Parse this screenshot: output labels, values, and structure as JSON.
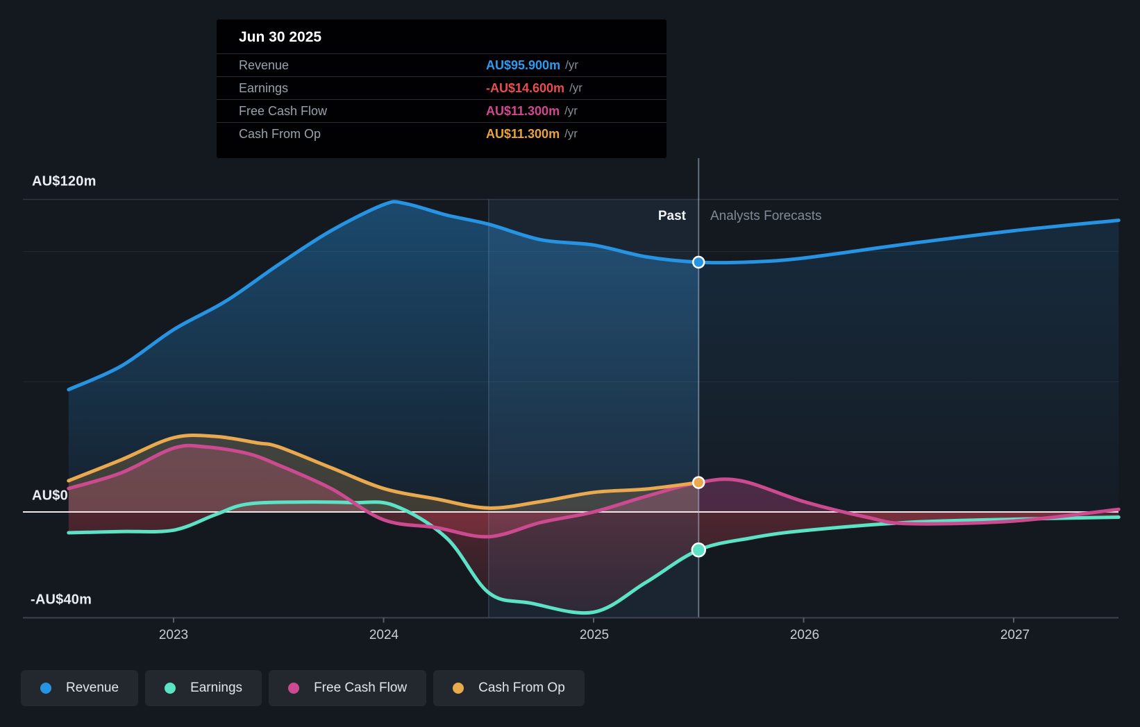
{
  "tooltip": {
    "title": "Jun 30 2025",
    "rows": [
      {
        "label": "Revenue",
        "value": "AU$95.900m",
        "suffix": "/yr",
        "color": "#2d9bf0"
      },
      {
        "label": "Earnings",
        "value": "-AU$14.600m",
        "suffix": "/yr",
        "color": "#e84e4e"
      },
      {
        "label": "Free Cash Flow",
        "value": "AU$11.300m",
        "suffix": "/yr",
        "color": "#d2478f"
      },
      {
        "label": "Cash From Op",
        "value": "AU$11.300m",
        "suffix": "/yr",
        "color": "#e8a33d"
      }
    ]
  },
  "annotations": {
    "past": "Past",
    "forecast": "Analysts Forecasts"
  },
  "y_axis": {
    "labels": [
      {
        "text": "AU$120m",
        "value": 120
      },
      {
        "text": "AU$0",
        "value": 0
      },
      {
        "text": "-AU$40m",
        "value": -40
      }
    ],
    "faint_gridline_values": [
      100,
      50
    ]
  },
  "x_axis": {
    "labels": [
      "2023",
      "2024",
      "2025",
      "2026",
      "2027"
    ],
    "values": [
      2023,
      2024,
      2025,
      2026,
      2027
    ]
  },
  "legend": [
    {
      "label": "Revenue",
      "color": "#2694e3"
    },
    {
      "label": "Earnings",
      "color": "#5ce2c5"
    },
    {
      "label": "Free Cash Flow",
      "color": "#cc4b90"
    },
    {
      "label": "Cash From Op",
      "color": "#e9a94e"
    }
  ],
  "chart_data": {
    "type": "line",
    "title": "Past and future earnings per share, AU$ millions per year",
    "x_range": [
      2022.5,
      2027.5
    ],
    "y_range": [
      -40.5,
      135
    ],
    "divider_x": 2025.5,
    "highlight_band": [
      2024.5,
      2025.5
    ],
    "gridlines": [
      120,
      100,
      50,
      0,
      -40
    ],
    "marker_x": 2025.5,
    "series": [
      {
        "name": "Revenue",
        "color": "#2694e3",
        "marker_value": 95.9,
        "has_forecast": true,
        "points": [
          [
            2022.5,
            47
          ],
          [
            2022.75,
            56
          ],
          [
            2023.0,
            70
          ],
          [
            2023.25,
            81
          ],
          [
            2023.5,
            95
          ],
          [
            2023.75,
            108
          ],
          [
            2024.0,
            118
          ],
          [
            2024.1,
            118.5
          ],
          [
            2024.3,
            114
          ],
          [
            2024.5,
            110.5
          ],
          [
            2024.75,
            104.5
          ],
          [
            2025.0,
            102.5
          ],
          [
            2025.25,
            98
          ],
          [
            2025.5,
            95.9
          ],
          [
            2025.75,
            96
          ],
          [
            2026.0,
            97.5
          ],
          [
            2026.5,
            103
          ],
          [
            2027.0,
            108
          ],
          [
            2027.5,
            112
          ]
        ]
      },
      {
        "name": "Earnings",
        "color": "#5ce2c5",
        "marker_value": -14.6,
        "has_forecast": true,
        "points": [
          [
            2022.5,
            -8
          ],
          [
            2022.75,
            -7.5
          ],
          [
            2023.0,
            -7
          ],
          [
            2023.2,
            -1
          ],
          [
            2023.35,
            3
          ],
          [
            2023.6,
            3.8
          ],
          [
            2023.85,
            3.6
          ],
          [
            2024.05,
            2.5
          ],
          [
            2024.3,
            -10
          ],
          [
            2024.5,
            -31
          ],
          [
            2024.7,
            -35
          ],
          [
            2025.0,
            -38.5
          ],
          [
            2025.25,
            -27
          ],
          [
            2025.5,
            -14.6
          ],
          [
            2025.75,
            -10
          ],
          [
            2026.0,
            -7.2
          ],
          [
            2026.5,
            -4
          ],
          [
            2027.0,
            -2.8
          ],
          [
            2027.5,
            -2
          ]
        ]
      },
      {
        "name": "Free Cash Flow",
        "color": "#cc4b90",
        "marker_value": null,
        "has_forecast": true,
        "points": [
          [
            2022.5,
            9
          ],
          [
            2022.75,
            15
          ],
          [
            2023.0,
            24.5
          ],
          [
            2023.15,
            25
          ],
          [
            2023.35,
            22.5
          ],
          [
            2023.5,
            18
          ],
          [
            2023.75,
            9
          ],
          [
            2024.0,
            -3
          ],
          [
            2024.25,
            -6
          ],
          [
            2024.5,
            -9.5
          ],
          [
            2024.75,
            -4
          ],
          [
            2025.0,
            0
          ],
          [
            2025.25,
            6
          ],
          [
            2025.5,
            11.3
          ],
          [
            2025.7,
            12
          ],
          [
            2026.0,
            4
          ],
          [
            2026.3,
            -2
          ],
          [
            2026.5,
            -4.5
          ],
          [
            2027.0,
            -3.5
          ],
          [
            2027.5,
            1
          ]
        ]
      },
      {
        "name": "Cash From Op",
        "color": "#e9a94e",
        "marker_value": 11.3,
        "has_forecast": false,
        "points": [
          [
            2022.5,
            12
          ],
          [
            2022.75,
            20
          ],
          [
            2023.0,
            28.5
          ],
          [
            2023.2,
            29
          ],
          [
            2023.4,
            26.5
          ],
          [
            2023.5,
            25
          ],
          [
            2023.75,
            17
          ],
          [
            2024.0,
            9
          ],
          [
            2024.25,
            5
          ],
          [
            2024.5,
            1.5
          ],
          [
            2024.75,
            4
          ],
          [
            2025.0,
            7.5
          ],
          [
            2025.25,
            8.8
          ],
          [
            2025.5,
            11.3
          ]
        ]
      }
    ]
  }
}
